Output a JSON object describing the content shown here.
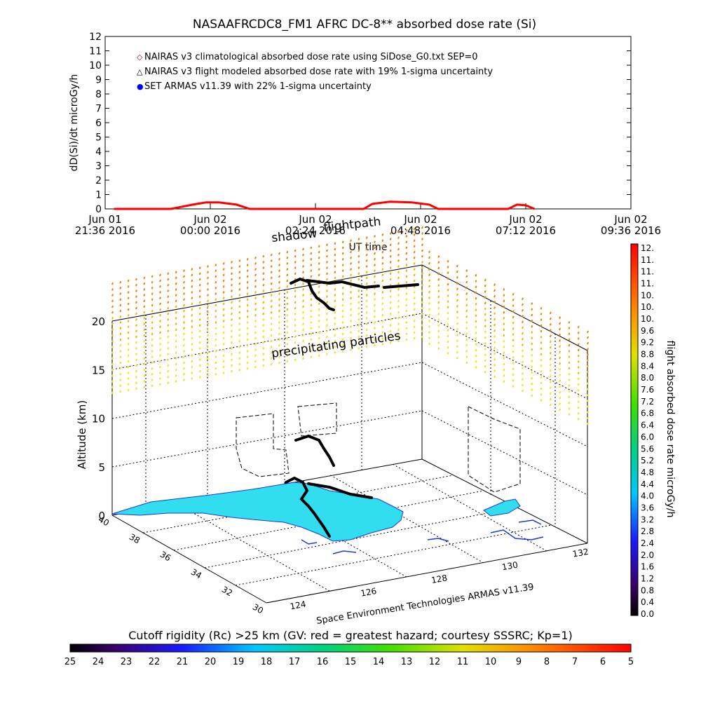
{
  "chart_data": [
    {
      "type": "line",
      "title": "NASAAFRCDC8_FM1 AFRC DC-8** absorbed dose rate (Si)",
      "ylabel": "dD(Si)/dt microGy/h",
      "xlabel": "UT time",
      "ylim": [
        0,
        12
      ],
      "y_ticks": [
        "0",
        "1",
        "2",
        "3",
        "4",
        "5",
        "6",
        "7",
        "8",
        "9",
        "10",
        "11",
        "12"
      ],
      "x_ticks": [
        {
          "top": "Jun 01",
          "bottom": "21:36 2016",
          "hour": 0
        },
        {
          "top": "Jun 02",
          "bottom": "00:00 2016",
          "hour": 2.4
        },
        {
          "top": "Jun 02",
          "bottom": "02:24 2016",
          "hour": 4.8
        },
        {
          "top": "Jun 02",
          "bottom": "04:48 2016",
          "hour": 7.2
        },
        {
          "top": "Jun 02",
          "bottom": "07:12 2016",
          "hour": 9.6
        },
        {
          "top": "Jun 02",
          "bottom": "09:36 2016",
          "hour": 12.0
        }
      ],
      "xlim": [
        0,
        12.0
      ],
      "legend": [
        {
          "marker": "◇",
          "color": "#cc0000",
          "text": "NAIRAS v3 climatological absorbed dose rate using SiDose_G0.txt SEP=0"
        },
        {
          "marker": "△",
          "color": "#000000",
          "text": "NAIRAS v3 flight modeled absorbed dose rate with 19% 1-sigma uncertainty"
        },
        {
          "marker": "●",
          "color": "#0000ff",
          "text": "SET ARMAS v11.39 with 22% 1-sigma uncertainty"
        }
      ],
      "legend_position": "top-left",
      "series": [
        {
          "color": "#ff0000",
          "x": [
            0.2,
            1.5,
            2.0,
            2.3,
            2.6,
            3.0,
            3.3,
            4.0,
            5.0,
            5.9,
            6.1,
            6.5,
            7.0,
            7.4,
            7.6,
            8.5,
            9.2,
            9.4,
            9.6,
            9.8
          ],
          "y": [
            0,
            0,
            0.3,
            0.45,
            0.45,
            0.3,
            0,
            0,
            0,
            0,
            0.35,
            0.5,
            0.45,
            0.3,
            0,
            0,
            0,
            0.3,
            0.25,
            0
          ]
        }
      ],
      "grid": false
    },
    {
      "type": "scatter",
      "title": "",
      "annotations": [
        "shadow",
        "flightpath",
        "precipitating particles"
      ],
      "zlabel": "Altitude (km)",
      "z_ticks": [
        "0",
        "5",
        "10",
        "15",
        "20"
      ],
      "zlim": [
        0,
        20
      ],
      "lat_ticks": [
        "30",
        "32",
        "34",
        "36",
        "38",
        "40"
      ],
      "lon_ticks": [
        "124",
        "126",
        "128",
        "130",
        "132"
      ],
      "bottom_label": "Space Environment Technologies ARMAS v11.39",
      "grid": true,
      "colorbar": {
        "label": "flight absorbed dose rate microGy/h",
        "orientation": "vertical",
        "range": [
          0,
          12
        ],
        "ticks": [
          "12.",
          "11.",
          "11.",
          "11.",
          "10.",
          "10.",
          "10.",
          "9.6",
          "9.2",
          "8.8",
          "8.4",
          "8.0",
          "7.6",
          "7.2",
          "6.8",
          "6.4",
          "6.0",
          "5.6",
          "5.2",
          "4.8",
          "4.4",
          "4.0",
          "3.6",
          "3.2",
          "2.8",
          "2.4",
          "2.0",
          "1.6",
          "1.2",
          "0.8",
          "0.4",
          "0.0"
        ]
      }
    }
  ],
  "bottom_colorbar": {
    "label": "Cutoff rigidity (Rc) >25 km (GV: red = greatest hazard; courtesy SSSRC; Kp=1)",
    "ticks": [
      "25",
      "24",
      "23",
      "22",
      "21",
      "20",
      "19",
      "18",
      "17",
      "16",
      "15",
      "14",
      "13",
      "12",
      "11",
      "10",
      "9",
      "8",
      "7",
      "6",
      "5"
    ]
  },
  "colors": {
    "land": "#33ddf0",
    "coast": "#1a3cd6",
    "flight_track": "#000000",
    "dose_line": "#ff0000"
  }
}
